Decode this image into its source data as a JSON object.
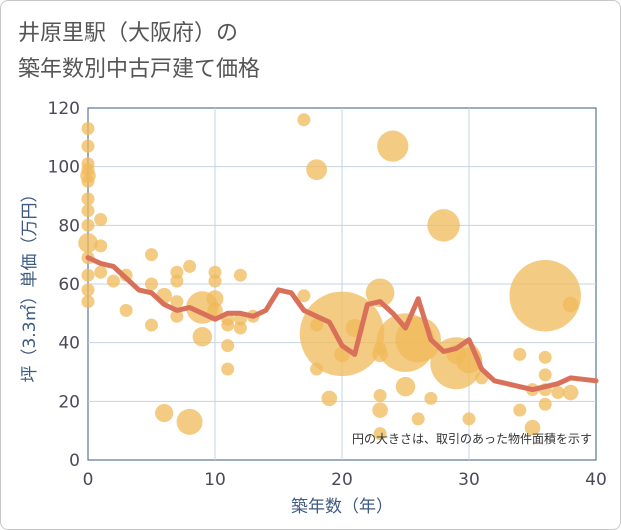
{
  "title": {
    "line1": "井原里駅（大阪府）の",
    "line2": "築年数別中古戸建て価格"
  },
  "chart_data": {
    "type": "scatter",
    "title": "井原里駅（大阪府）の築年数別中古戸建て価格",
    "xlabel": "築年数（年）",
    "ylabel": "坪（3.3㎡）単価（万円）",
    "xlim": [
      0,
      40
    ],
    "ylim": [
      0,
      120
    ],
    "xticks": [
      0,
      10,
      20,
      30,
      40
    ],
    "yticks": [
      0,
      20,
      40,
      60,
      80,
      100,
      120
    ],
    "grid": true,
    "note": "円の大きさは、取引のあった物件面積を示す",
    "colors": {
      "bubble": "#f0b95a",
      "line": "#d9705a",
      "grid": "#c5d3e2",
      "axis": "#3d5a80"
    },
    "points": [
      {
        "x": 0,
        "y": 113,
        "s": 1
      },
      {
        "x": 0,
        "y": 107,
        "s": 1
      },
      {
        "x": 0,
        "y": 101,
        "s": 1
      },
      {
        "x": 0,
        "y": 99,
        "s": 1
      },
      {
        "x": 0,
        "y": 97,
        "s": 1.2
      },
      {
        "x": 0,
        "y": 95,
        "s": 1
      },
      {
        "x": 0,
        "y": 89,
        "s": 1
      },
      {
        "x": 0,
        "y": 85,
        "s": 1
      },
      {
        "x": 0,
        "y": 80,
        "s": 1
      },
      {
        "x": 0,
        "y": 74,
        "s": 1.5
      },
      {
        "x": 0,
        "y": 69,
        "s": 1
      },
      {
        "x": 0,
        "y": 63,
        "s": 1
      },
      {
        "x": 0,
        "y": 58,
        "s": 1
      },
      {
        "x": 0,
        "y": 54,
        "s": 1
      },
      {
        "x": 1,
        "y": 82,
        "s": 1
      },
      {
        "x": 1,
        "y": 73,
        "s": 1
      },
      {
        "x": 1,
        "y": 64,
        "s": 1
      },
      {
        "x": 2,
        "y": 61,
        "s": 1
      },
      {
        "x": 3,
        "y": 63,
        "s": 1
      },
      {
        "x": 3,
        "y": 51,
        "s": 1
      },
      {
        "x": 5,
        "y": 70,
        "s": 1
      },
      {
        "x": 5,
        "y": 60,
        "s": 1
      },
      {
        "x": 5,
        "y": 46,
        "s": 1
      },
      {
        "x": 6,
        "y": 56,
        "s": 1.2
      },
      {
        "x": 6,
        "y": 16,
        "s": 1.4
      },
      {
        "x": 7,
        "y": 64,
        "s": 1
      },
      {
        "x": 7,
        "y": 61,
        "s": 1
      },
      {
        "x": 7,
        "y": 54,
        "s": 1
      },
      {
        "x": 7,
        "y": 49,
        "s": 1
      },
      {
        "x": 8,
        "y": 66,
        "s": 1
      },
      {
        "x": 8,
        "y": 13,
        "s": 2
      },
      {
        "x": 9,
        "y": 52,
        "s": 2.5
      },
      {
        "x": 9,
        "y": 42,
        "s": 1.5
      },
      {
        "x": 10,
        "y": 64,
        "s": 1
      },
      {
        "x": 10,
        "y": 61,
        "s": 1
      },
      {
        "x": 10,
        "y": 55,
        "s": 1.3
      },
      {
        "x": 10,
        "y": 51,
        "s": 1.2
      },
      {
        "x": 11,
        "y": 48,
        "s": 1
      },
      {
        "x": 11,
        "y": 46,
        "s": 1
      },
      {
        "x": 11,
        "y": 39,
        "s": 1
      },
      {
        "x": 11,
        "y": 31,
        "s": 1
      },
      {
        "x": 12,
        "y": 63,
        "s": 1
      },
      {
        "x": 12,
        "y": 48,
        "s": 1
      },
      {
        "x": 12,
        "y": 45,
        "s": 1
      },
      {
        "x": 13,
        "y": 49,
        "s": 1
      },
      {
        "x": 17,
        "y": 116,
        "s": 1
      },
      {
        "x": 17,
        "y": 56,
        "s": 1
      },
      {
        "x": 18,
        "y": 99,
        "s": 1.6
      },
      {
        "x": 18,
        "y": 46,
        "s": 1
      },
      {
        "x": 18,
        "y": 31,
        "s": 1
      },
      {
        "x": 19,
        "y": 21,
        "s": 1.2
      },
      {
        "x": 20,
        "y": 43,
        "s": 6.5
      },
      {
        "x": 20,
        "y": 36,
        "s": 1.2
      },
      {
        "x": 21,
        "y": 45,
        "s": 1.4
      },
      {
        "x": 23,
        "y": 57,
        "s": 2.2
      },
      {
        "x": 23,
        "y": 38,
        "s": 1
      },
      {
        "x": 23,
        "y": 36,
        "s": 1.2
      },
      {
        "x": 23,
        "y": 22,
        "s": 1
      },
      {
        "x": 23,
        "y": 17,
        "s": 1.2
      },
      {
        "x": 23,
        "y": 9,
        "s": 1
      },
      {
        "x": 24,
        "y": 107,
        "s": 2.4
      },
      {
        "x": 25,
        "y": 40,
        "s": 4.5
      },
      {
        "x": 25,
        "y": 25,
        "s": 1.5
      },
      {
        "x": 26,
        "y": 41,
        "s": 3.5
      },
      {
        "x": 26,
        "y": 14,
        "s": 1
      },
      {
        "x": 27,
        "y": 21,
        "s": 1
      },
      {
        "x": 28,
        "y": 80,
        "s": 2.5
      },
      {
        "x": 29,
        "y": 36,
        "s": 1.5
      },
      {
        "x": 29,
        "y": 33,
        "s": 4
      },
      {
        "x": 30,
        "y": 34,
        "s": 2
      },
      {
        "x": 30,
        "y": 14,
        "s": 1
      },
      {
        "x": 31,
        "y": 28,
        "s": 1
      },
      {
        "x": 34,
        "y": 36,
        "s": 1
      },
      {
        "x": 34,
        "y": 17,
        "s": 1
      },
      {
        "x": 35,
        "y": 24,
        "s": 1
      },
      {
        "x": 35,
        "y": 11,
        "s": 1.2
      },
      {
        "x": 36,
        "y": 56,
        "s": 5.5
      },
      {
        "x": 36,
        "y": 35,
        "s": 1
      },
      {
        "x": 36,
        "y": 29,
        "s": 1
      },
      {
        "x": 36,
        "y": 24,
        "s": 1
      },
      {
        "x": 36,
        "y": 19,
        "s": 1
      },
      {
        "x": 37,
        "y": 23,
        "s": 1
      },
      {
        "x": 38,
        "y": 53,
        "s": 1.2
      },
      {
        "x": 38,
        "y": 23,
        "s": 1.2
      }
    ],
    "trend": [
      {
        "x": 0,
        "y": 69
      },
      {
        "x": 1,
        "y": 67
      },
      {
        "x": 2,
        "y": 66
      },
      {
        "x": 3,
        "y": 62
      },
      {
        "x": 4,
        "y": 58
      },
      {
        "x": 5,
        "y": 57
      },
      {
        "x": 6,
        "y": 53
      },
      {
        "x": 7,
        "y": 51
      },
      {
        "x": 8,
        "y": 52
      },
      {
        "x": 9,
        "y": 50
      },
      {
        "x": 10,
        "y": 48
      },
      {
        "x": 11,
        "y": 50
      },
      {
        "x": 12,
        "y": 50
      },
      {
        "x": 13,
        "y": 49
      },
      {
        "x": 14,
        "y": 51
      },
      {
        "x": 15,
        "y": 58
      },
      {
        "x": 16,
        "y": 57
      },
      {
        "x": 17,
        "y": 51
      },
      {
        "x": 18,
        "y": 49
      },
      {
        "x": 19,
        "y": 47
      },
      {
        "x": 20,
        "y": 39
      },
      {
        "x": 21,
        "y": 36
      },
      {
        "x": 22,
        "y": 53
      },
      {
        "x": 23,
        "y": 54
      },
      {
        "x": 24,
        "y": 50
      },
      {
        "x": 25,
        "y": 45
      },
      {
        "x": 26,
        "y": 55
      },
      {
        "x": 27,
        "y": 41
      },
      {
        "x": 28,
        "y": 37
      },
      {
        "x": 29,
        "y": 38
      },
      {
        "x": 30,
        "y": 41
      },
      {
        "x": 31,
        "y": 31
      },
      {
        "x": 32,
        "y": 27
      },
      {
        "x": 33,
        "y": 26
      },
      {
        "x": 34,
        "y": 25
      },
      {
        "x": 35,
        "y": 24
      },
      {
        "x": 36,
        "y": 25
      },
      {
        "x": 37,
        "y": 26
      },
      {
        "x": 38,
        "y": 28
      },
      {
        "x": 39,
        "y": 27.5
      },
      {
        "x": 40,
        "y": 27
      }
    ]
  }
}
